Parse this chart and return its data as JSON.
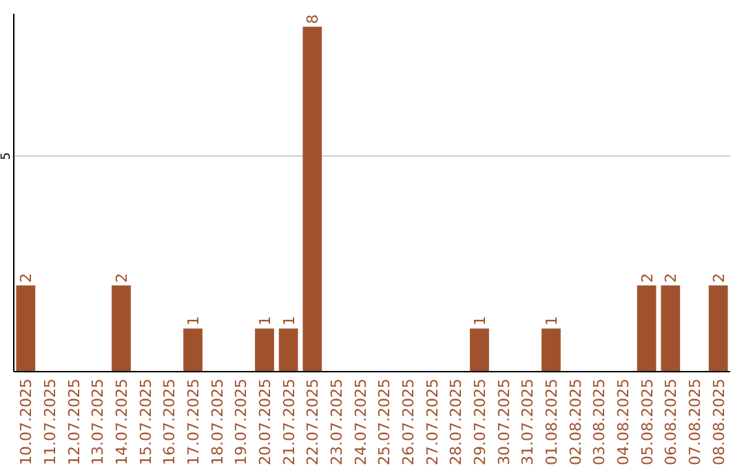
{
  "chart_data": {
    "type": "bar",
    "categories": [
      "10.07.2025",
      "11.07.2025",
      "12.07.2025",
      "13.07.2025",
      "14.07.2025",
      "15.07.2025",
      "16.07.2025",
      "17.07.2025",
      "18.07.2025",
      "19.07.2025",
      "20.07.2025",
      "21.07.2025",
      "22.07.2025",
      "23.07.2025",
      "24.07.2025",
      "25.07.2025",
      "26.07.2025",
      "27.07.2025",
      "28.07.2025",
      "29.07.2025",
      "30.07.2025",
      "31.07.2025",
      "01.08.2025",
      "02.08.2025",
      "03.08.2025",
      "04.08.2025",
      "05.08.2025",
      "06.08.2025",
      "07.08.2025",
      "08.08.2025"
    ],
    "values": [
      2,
      0,
      0,
      0,
      2,
      0,
      0,
      1,
      0,
      0,
      1,
      1,
      8,
      0,
      0,
      0,
      0,
      0,
      0,
      1,
      0,
      0,
      1,
      0,
      0,
      0,
      2,
      2,
      0,
      2
    ],
    "value_labels": [
      "2",
      null,
      null,
      null,
      "2",
      null,
      null,
      "1",
      null,
      null,
      "1",
      "1",
      "8",
      null,
      null,
      null,
      null,
      null,
      null,
      "1",
      null,
      null,
      "1",
      null,
      null,
      null,
      "2",
      "2",
      null,
      "2"
    ],
    "color": "#a0522d",
    "ylim": [
      0,
      8.3
    ],
    "yticks": [
      5
    ],
    "grid": "y"
  }
}
